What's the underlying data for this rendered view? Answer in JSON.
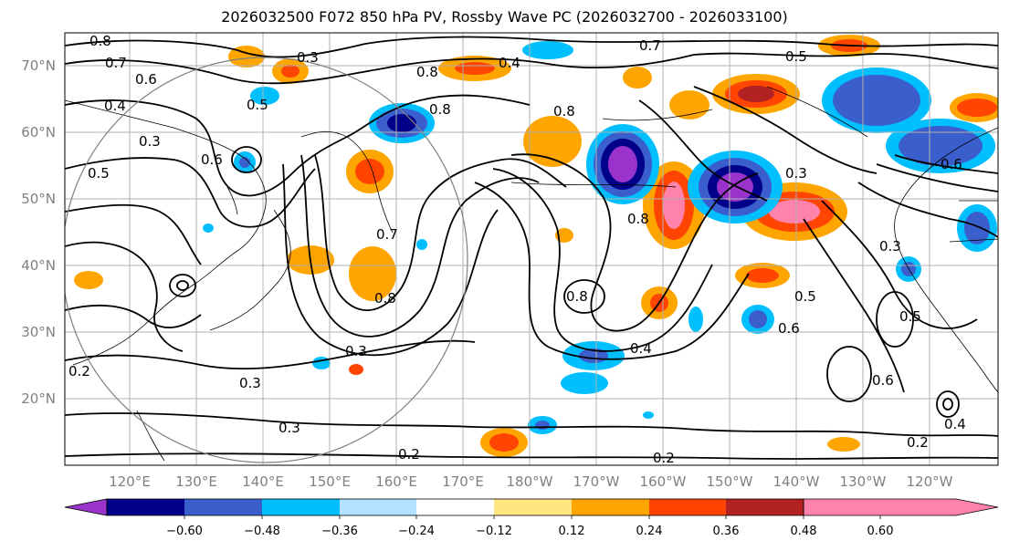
{
  "title": "2026032500 F072 850 hPa PV, Rossby Wave PC (2026032700 - 2026033100)",
  "lat_labels": [
    "70°N",
    "60°N",
    "50°N",
    "40°N",
    "30°N",
    "20°N"
  ],
  "lon_labels": [
    "120°E",
    "130°E",
    "140°E",
    "150°E",
    "160°E",
    "170°E",
    "180°W",
    "170°W",
    "160°W",
    "150°W",
    "140°W",
    "130°W",
    "120°W"
  ],
  "colorbar": {
    "colors": [
      "#9933cc",
      "#00008b",
      "#3a5fcd",
      "#00bfff",
      "#b2e2ff",
      "#ffffff",
      "#ffe680",
      "#ffa500",
      "#ff4500",
      "#b22222",
      "#ff82ab"
    ],
    "tick_labels": [
      "−0.60",
      "−0.48",
      "−0.36",
      "−0.24",
      "−0.12",
      "0.12",
      "0.24",
      "0.36",
      "0.48",
      "0.60"
    ]
  },
  "contour_labels": [
    "0.8",
    "0.7",
    "0.6",
    "0.4",
    "0.3",
    "0.5",
    "0.6",
    "0.5",
    "0.8",
    "0.4",
    "0.8",
    "0.7",
    "0.3",
    "0.5",
    "0.7",
    "0.8",
    "0.3",
    "0.3",
    "0.3",
    "0.2",
    "0.2",
    "0.8",
    "0.4",
    "0.8",
    "0.5",
    "0.6",
    "0.5",
    "0.6",
    "0.3",
    "0.2",
    "0.4",
    "0.3",
    "0.8",
    "0.2",
    "0.6"
  ],
  "colors": {
    "contour": "#000000",
    "grid": "#b0b0b0",
    "coast": "#000000",
    "circle": "#808080",
    "axis_label": "#808080"
  }
}
